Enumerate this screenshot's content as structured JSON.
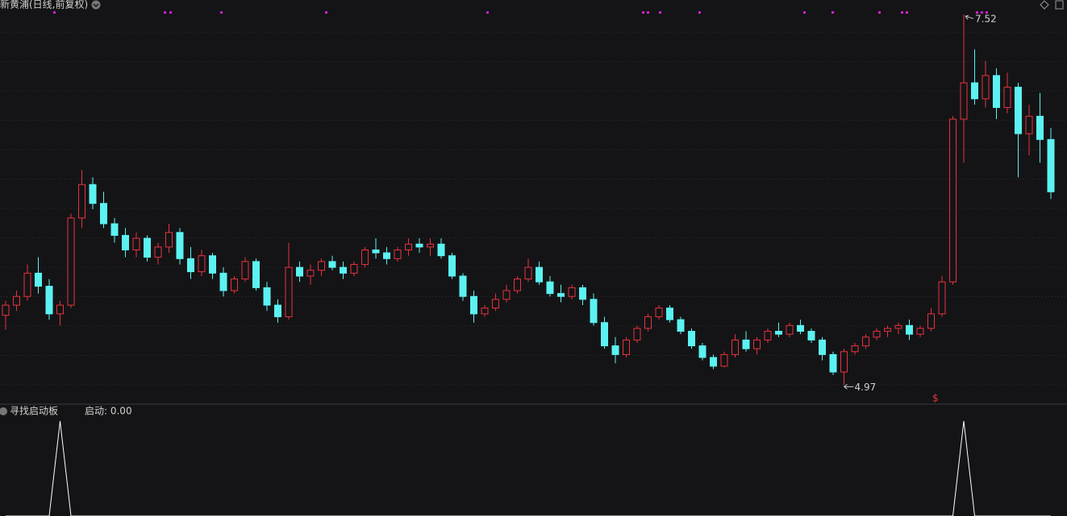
{
  "chart_data": {
    "type": "candlestick",
    "title": "新黄浦(日线,前复权)",
    "marker": "$",
    "up_color": "#e8323e",
    "down_color": "#5cf2f2",
    "ylim": [
      4.85,
      7.62
    ],
    "candles": [
      [
        5.45,
        5.55,
        5.35,
        5.52
      ],
      [
        5.52,
        5.62,
        5.48,
        5.58
      ],
      [
        5.58,
        5.8,
        5.55,
        5.74
      ],
      [
        5.74,
        5.85,
        5.6,
        5.65
      ],
      [
        5.65,
        5.7,
        5.42,
        5.46
      ],
      [
        5.46,
        5.55,
        5.38,
        5.52
      ],
      [
        5.52,
        6.15,
        5.5,
        6.12
      ],
      [
        6.12,
        6.45,
        6.05,
        6.35
      ],
      [
        6.35,
        6.4,
        6.18,
        6.22
      ],
      [
        6.22,
        6.3,
        6.05,
        6.08
      ],
      [
        6.08,
        6.12,
        5.95,
        6.0
      ],
      [
        6.0,
        6.05,
        5.85,
        5.9
      ],
      [
        5.9,
        6.02,
        5.85,
        5.98
      ],
      [
        5.98,
        6.0,
        5.82,
        5.85
      ],
      [
        5.85,
        5.95,
        5.8,
        5.92
      ],
      [
        5.92,
        6.08,
        5.88,
        6.02
      ],
      [
        6.02,
        6.05,
        5.8,
        5.84
      ],
      [
        5.84,
        5.92,
        5.7,
        5.75
      ],
      [
        5.75,
        5.9,
        5.72,
        5.86
      ],
      [
        5.86,
        5.88,
        5.7,
        5.74
      ],
      [
        5.74,
        5.78,
        5.58,
        5.62
      ],
      [
        5.62,
        5.72,
        5.6,
        5.7
      ],
      [
        5.7,
        5.85,
        5.68,
        5.82
      ],
      [
        5.82,
        5.84,
        5.62,
        5.64
      ],
      [
        5.64,
        5.68,
        5.48,
        5.52
      ],
      [
        5.52,
        5.56,
        5.4,
        5.44
      ],
      [
        5.44,
        5.95,
        5.42,
        5.78
      ],
      [
        5.78,
        5.82,
        5.68,
        5.72
      ],
      [
        5.72,
        5.8,
        5.66,
        5.76
      ],
      [
        5.76,
        5.84,
        5.72,
        5.82
      ],
      [
        5.82,
        5.86,
        5.76,
        5.78
      ],
      [
        5.78,
        5.82,
        5.7,
        5.74
      ],
      [
        5.74,
        5.82,
        5.72,
        5.8
      ],
      [
        5.8,
        5.92,
        5.78,
        5.9
      ],
      [
        5.9,
        5.98,
        5.84,
        5.88
      ],
      [
        5.88,
        5.92,
        5.8,
        5.84
      ],
      [
        5.84,
        5.92,
        5.82,
        5.9
      ],
      [
        5.9,
        5.98,
        5.86,
        5.94
      ],
      [
        5.94,
        5.98,
        5.88,
        5.92
      ],
      [
        5.92,
        5.98,
        5.86,
        5.94
      ],
      [
        5.94,
        5.98,
        5.84,
        5.86
      ],
      [
        5.86,
        5.88,
        5.7,
        5.72
      ],
      [
        5.72,
        5.74,
        5.55,
        5.58
      ],
      [
        5.58,
        5.62,
        5.4,
        5.46
      ],
      [
        5.46,
        5.52,
        5.44,
        5.5
      ],
      [
        5.5,
        5.6,
        5.48,
        5.56
      ],
      [
        5.56,
        5.66,
        5.54,
        5.62
      ],
      [
        5.62,
        5.72,
        5.6,
        5.7
      ],
      [
        5.7,
        5.84,
        5.68,
        5.78
      ],
      [
        5.78,
        5.82,
        5.66,
        5.68
      ],
      [
        5.68,
        5.72,
        5.58,
        5.6
      ],
      [
        5.6,
        5.66,
        5.54,
        5.58
      ],
      [
        5.58,
        5.66,
        5.56,
        5.64
      ],
      [
        5.64,
        5.66,
        5.52,
        5.56
      ],
      [
        5.56,
        5.6,
        5.38,
        5.4
      ],
      [
        5.4,
        5.44,
        5.22,
        5.24
      ],
      [
        5.24,
        5.3,
        5.12,
        5.18
      ],
      [
        5.18,
        5.3,
        5.16,
        5.28
      ],
      [
        5.28,
        5.38,
        5.26,
        5.36
      ],
      [
        5.36,
        5.46,
        5.34,
        5.44
      ],
      [
        5.44,
        5.52,
        5.42,
        5.5
      ],
      [
        5.5,
        5.52,
        5.4,
        5.42
      ],
      [
        5.42,
        5.44,
        5.32,
        5.34
      ],
      [
        5.34,
        5.36,
        5.22,
        5.24
      ],
      [
        5.24,
        5.26,
        5.14,
        5.16
      ],
      [
        5.16,
        5.18,
        5.08,
        5.1
      ],
      [
        5.1,
        5.2,
        5.09,
        5.18
      ],
      [
        5.18,
        5.32,
        5.16,
        5.28
      ],
      [
        5.28,
        5.34,
        5.2,
        5.22
      ],
      [
        5.22,
        5.3,
        5.18,
        5.28
      ],
      [
        5.28,
        5.36,
        5.26,
        5.34
      ],
      [
        5.34,
        5.4,
        5.3,
        5.32
      ],
      [
        5.32,
        5.4,
        5.3,
        5.38
      ],
      [
        5.38,
        5.42,
        5.32,
        5.34
      ],
      [
        5.34,
        5.36,
        5.26,
        5.28
      ],
      [
        5.28,
        5.3,
        5.14,
        5.18
      ],
      [
        5.18,
        5.2,
        5.04,
        5.06
      ],
      [
        5.06,
        5.22,
        4.97,
        5.2
      ],
      [
        5.2,
        5.26,
        5.18,
        5.24
      ],
      [
        5.24,
        5.32,
        5.22,
        5.3
      ],
      [
        5.3,
        5.36,
        5.28,
        5.34
      ],
      [
        5.34,
        5.38,
        5.3,
        5.36
      ],
      [
        5.36,
        5.4,
        5.32,
        5.38
      ],
      [
        5.38,
        5.42,
        5.28,
        5.32
      ],
      [
        5.32,
        5.38,
        5.3,
        5.36
      ],
      [
        5.36,
        5.5,
        5.34,
        5.46
      ],
      [
        5.46,
        5.72,
        5.44,
        5.68
      ],
      [
        5.68,
        6.82,
        5.66,
        6.8
      ],
      [
        6.8,
        7.52,
        6.5,
        7.05
      ],
      [
        7.05,
        7.28,
        6.9,
        6.94
      ],
      [
        6.94,
        7.2,
        6.88,
        7.1
      ],
      [
        7.1,
        7.15,
        6.8,
        6.88
      ],
      [
        6.88,
        7.12,
        6.84,
        7.02
      ],
      [
        7.02,
        7.05,
        6.4,
        6.7
      ],
      [
        6.7,
        6.9,
        6.55,
        6.82
      ],
      [
        6.82,
        6.98,
        6.5,
        6.66
      ],
      [
        6.66,
        6.74,
        6.25,
        6.3
      ]
    ],
    "indicator": {
      "title": "寻找启动板",
      "label": "启动: 0.00",
      "color": "#ffffff",
      "ylim": [
        0,
        1
      ],
      "values": [
        0,
        0,
        0,
        0,
        0,
        1,
        0,
        0,
        0,
        0,
        0,
        0,
        0,
        0,
        0,
        0,
        0,
        0,
        0,
        0,
        0,
        0,
        0,
        0,
        0,
        0,
        0,
        0,
        0,
        0,
        0,
        0,
        0,
        0,
        0,
        0,
        0,
        0,
        0,
        0,
        0,
        0,
        0,
        0,
        0,
        0,
        0,
        0,
        0,
        0,
        0,
        0,
        0,
        0,
        0,
        0,
        0,
        0,
        0,
        0,
        0,
        0,
        0,
        0,
        0,
        0,
        0,
        0,
        0,
        0,
        0,
        0,
        0,
        0,
        0,
        0,
        0,
        0,
        0,
        0,
        0,
        0,
        0,
        0,
        0,
        0,
        0,
        0,
        1,
        0,
        0,
        0,
        0,
        0,
        0,
        0,
        0
      ]
    }
  }
}
